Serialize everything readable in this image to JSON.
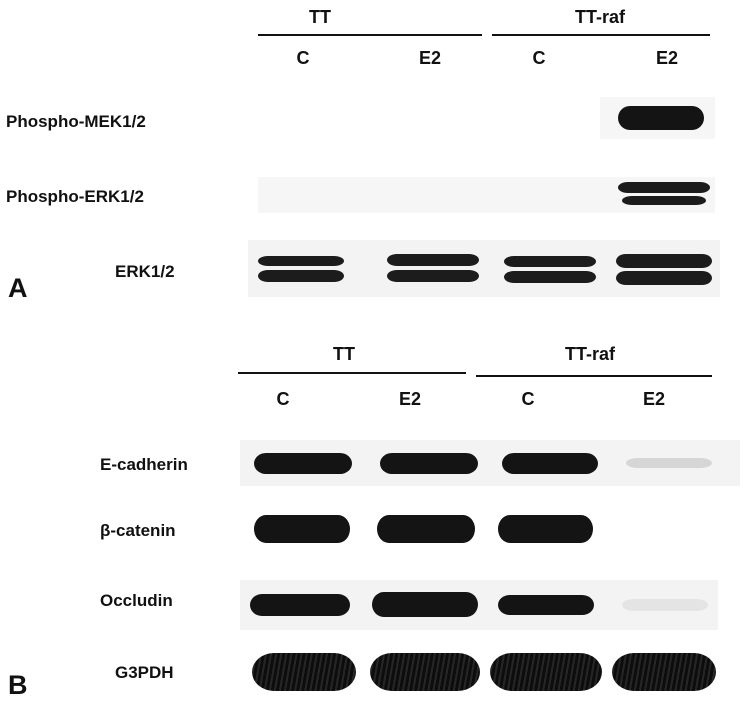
{
  "panel_a": {
    "letter": "A",
    "groups": [
      "TT",
      "TT-raf"
    ],
    "lanes": [
      "C",
      "E2",
      "C",
      "E2"
    ],
    "rows": [
      "Phospho-MEK1/2",
      "Phospho-ERK1/2",
      "ERK1/2"
    ]
  },
  "panel_b": {
    "letter": "B",
    "groups": [
      "TT",
      "TT-raf"
    ],
    "lanes": [
      "C",
      "E2",
      "C",
      "E2"
    ],
    "rows": [
      "E-cadherin",
      "β-catenin",
      "Occludin",
      "G3PDH"
    ]
  }
}
